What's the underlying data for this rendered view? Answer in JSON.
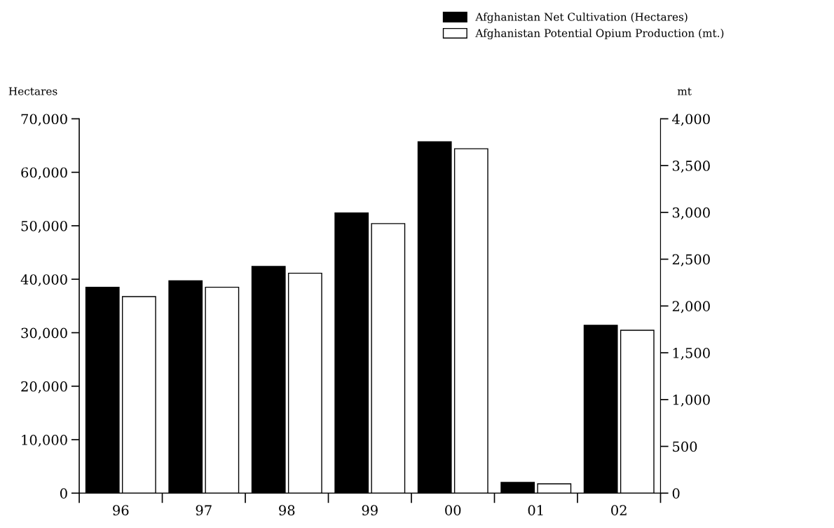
{
  "chart_data": {
    "type": "bar",
    "ylabel": "Hectares",
    "y2label": "mt",
    "categories": [
      "96",
      "97",
      "98",
      "99",
      "00",
      "01",
      "02"
    ],
    "series": [
      {
        "name": "Afghanistan Net Cultivation (Hectares)",
        "color": "#000000",
        "values": [
          38500,
          39700,
          42400,
          52400,
          65700,
          2000,
          31400
        ]
      },
      {
        "name": "Afghanistan Potential Opium Production (mt.)",
        "color": "#ffffff",
        "axis": "y2",
        "values": [
          2100,
          2200,
          2350,
          2880,
          3680,
          100,
          1740
        ]
      }
    ],
    "ylim": [
      0,
      70000
    ],
    "yticks": [
      0,
      {
        "value": 10000,
        "label": "10,000"
      },
      {
        "value": 20000,
        "label": "20,000"
      },
      {
        "value": 30000,
        "label": "30,000"
      },
      {
        "value": 40000,
        "label": "40,000"
      },
      {
        "value": 50000,
        "label": "50,000"
      },
      {
        "value": 60000,
        "label": "60,000"
      },
      {
        "value": 70000,
        "label": "70,000"
      }
    ],
    "y2lim": [
      0,
      4000
    ],
    "y2ticks": [
      0,
      500,
      {
        "value": 1000,
        "label": "1,000"
      },
      {
        "value": 1500,
        "label": "1,500"
      },
      {
        "value": 2000,
        "label": "2,000"
      },
      {
        "value": 2500,
        "label": "2,500"
      },
      {
        "value": 3000,
        "label": "3,000"
      },
      {
        "value": 3500,
        "label": "3,500"
      },
      {
        "value": 4000,
        "label": "4,000"
      }
    ],
    "grid": false,
    "legend": "top right"
  }
}
